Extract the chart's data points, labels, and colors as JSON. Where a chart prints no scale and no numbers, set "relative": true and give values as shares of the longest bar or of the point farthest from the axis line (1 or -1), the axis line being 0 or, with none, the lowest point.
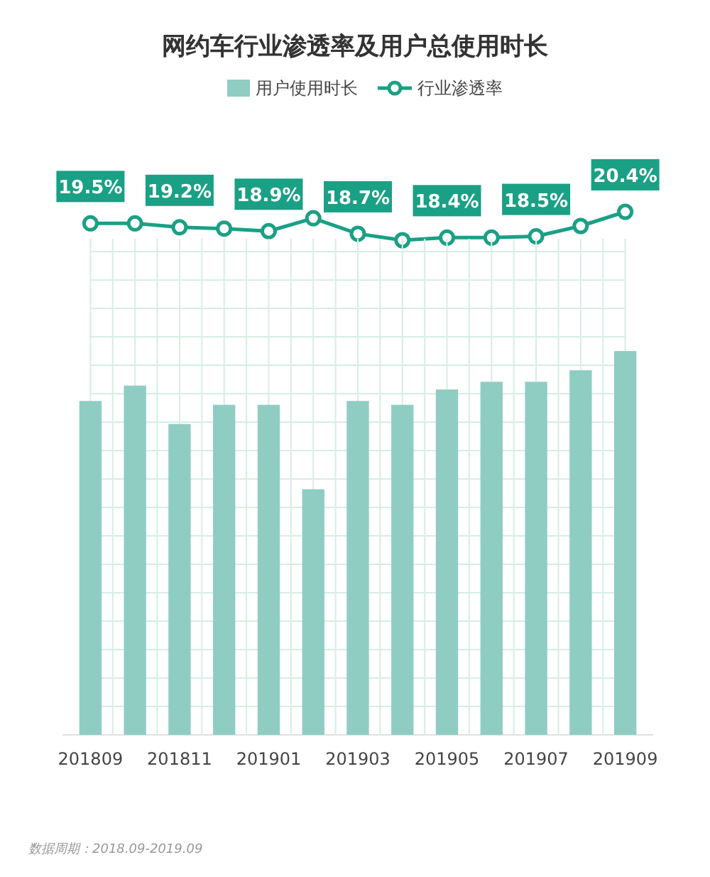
{
  "chart_data": [
    {
      "type": "line",
      "title": "网约车行业渗透率及用户总使用时长",
      "legend": "top",
      "marker": "circle",
      "categories": [
        null,
        null,
        null,
        null,
        null,
        null,
        null,
        null,
        null,
        null,
        null,
        null,
        null
      ],
      "series": [
        {
          "name": "行业渗透率",
          "color": "#1aa085",
          "values": [
            19.5,
            19.5,
            19.2,
            19.1,
            18.9,
            19.9,
            18.7,
            18.2,
            18.4,
            18.4,
            18.5,
            19.3,
            20.4
          ],
          "value_labels": [
            "19.5%",
            null,
            "19.2%",
            null,
            "18.9%",
            null,
            "18.7%",
            null,
            "18.4%",
            null,
            "18.5%",
            null,
            "20.4%"
          ]
        }
      ]
    },
    {
      "type": "bar",
      "relative": true,
      "grid": true,
      "legend": "top",
      "categories": [
        "201809",
        null,
        "201811",
        null,
        "201901",
        null,
        "201903",
        null,
        "201905",
        null,
        "201907",
        null,
        "201909"
      ],
      "series": [
        {
          "name": "用户使用时长",
          "color": "#8fcdc3",
          "values": [
            0.87,
            0.91,
            0.81,
            0.86,
            0.86,
            0.64,
            0.87,
            0.86,
            0.9,
            0.92,
            0.92,
            0.95,
            1
          ]
        }
      ],
      "annotations": [
        "数据周期：2018.09-2019.09"
      ]
    }
  ]
}
